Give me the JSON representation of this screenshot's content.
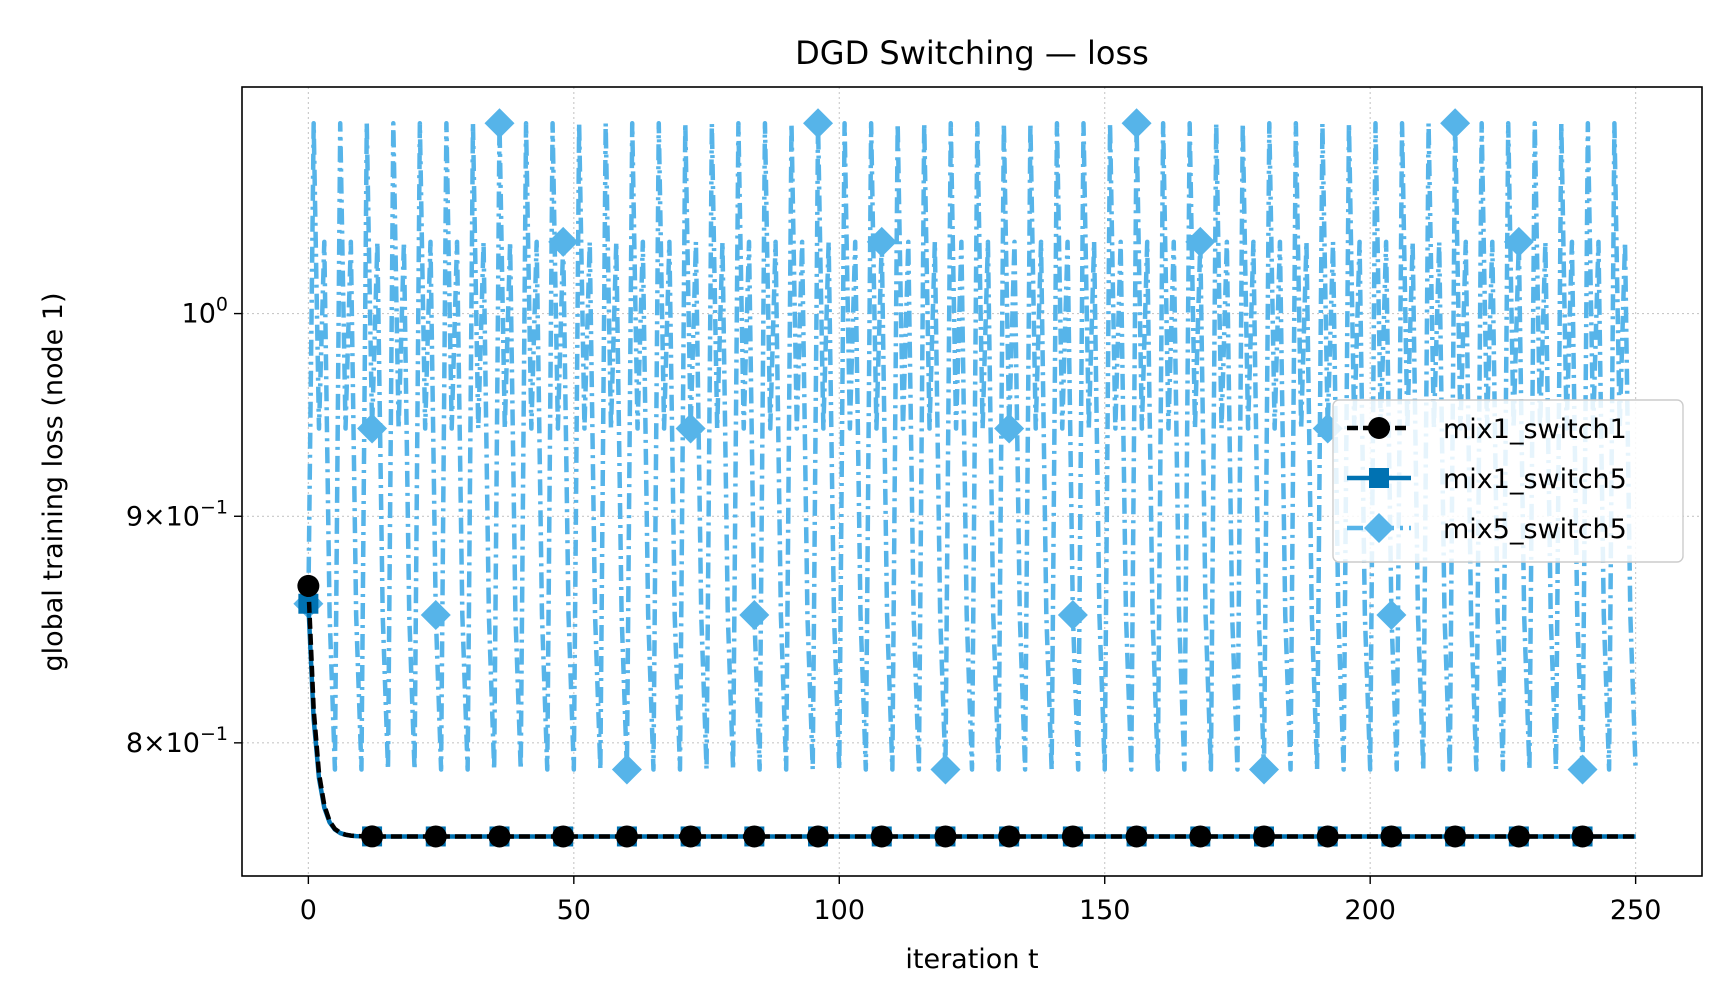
{
  "chart_data": {
    "type": "line",
    "title": "DGD Switching — loss",
    "xlabel": "iteration t",
    "ylabel": "global training loss (node 1)",
    "xlim": [
      -12.5,
      262.5
    ],
    "ylim": [
      0.7465,
      1.125
    ],
    "yscale": "log",
    "grid": true,
    "legend_position": "right",
    "x_ticks": [
      0,
      50,
      100,
      150,
      200,
      250
    ],
    "x_tick_labels": [
      "0",
      "50",
      "100",
      "150",
      "200",
      "250"
    ],
    "y_ticks": [
      {
        "value": 0.8,
        "base": "8",
        "mult": "×",
        "pow": "10",
        "exp": "−1"
      },
      {
        "value": 0.9,
        "base": "9",
        "mult": "×",
        "pow": "10",
        "exp": "−1"
      },
      {
        "value": 1.0,
        "base": "",
        "mult": "",
        "pow": "10",
        "exp": "0"
      }
    ],
    "series": [
      {
        "name": "mix1_switch1",
        "color": "#000000",
        "linestyle": "dashed",
        "marker": "circle",
        "start": 0.868,
        "plateau": 0.762,
        "decay": 1.4,
        "markevery": 12
      },
      {
        "name": "mix1_switch5",
        "color": "#0072b2",
        "linestyle": "solid",
        "marker": "square",
        "start": 0.86,
        "plateau": 0.762,
        "decay": 1.4,
        "markevery": 12
      },
      {
        "name": "mix5_switch5",
        "color": "#56b4e9",
        "linestyle": "dashdot",
        "marker": "diamond",
        "start": 0.86,
        "oscillation_period": 5,
        "values_by_phase": [
          0.789,
          1.104,
          0.942,
          1.038,
          0.855
        ],
        "markevery": 12
      }
    ],
    "x_range": [
      0,
      250
    ]
  }
}
